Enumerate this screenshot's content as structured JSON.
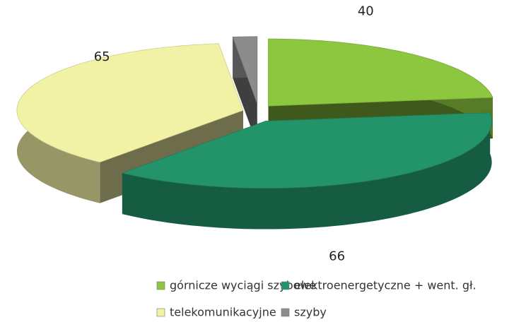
{
  "chart_data": {
    "type": "pie",
    "categories": [
      "górnicze wyciągi szybowe",
      "elektroenergetyczne + went. gł.",
      "telekomunikacyjne",
      "szyby"
    ],
    "values": [
      40,
      66,
      65,
      3
    ],
    "colors": [
      "#8dc63f",
      "#23946a",
      "#f2f2a6",
      "#8c8c8c"
    ],
    "legend": "bottom"
  }
}
